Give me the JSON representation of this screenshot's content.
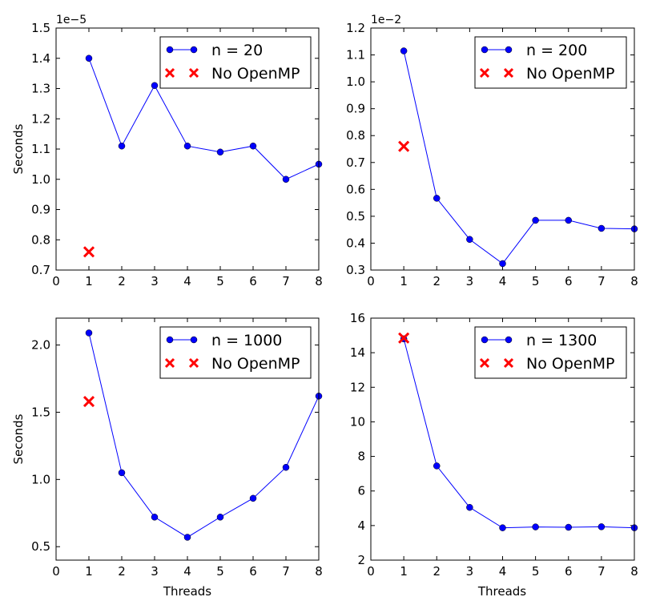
{
  "figure": {
    "shared_xlabel": "Threads",
    "shared_ylabel": "Seconds"
  },
  "colors": {
    "series": "#0000ff",
    "no_openmp": "#ff0000",
    "axes": "#000000"
  },
  "chart_data": [
    {
      "type": "line",
      "title": "",
      "xlabel": "",
      "ylabel": "Seconds",
      "xlim": [
        0,
        8
      ],
      "ylim": [
        0.7,
        1.5
      ],
      "xticks": [
        0,
        1,
        2,
        3,
        4,
        5,
        6,
        7,
        8
      ],
      "xtick_labels": [
        "0",
        "1",
        "2",
        "3",
        "4",
        "5",
        "6",
        "7",
        "8"
      ],
      "yticks": [
        0.7,
        0.8,
        0.9,
        1.0,
        1.1,
        1.2,
        1.3,
        1.4,
        1.5
      ],
      "ytick_labels": [
        "0.7",
        "0.8",
        "0.9",
        "1.0",
        "1.1",
        "1.2",
        "1.3",
        "1.4",
        "1.5"
      ],
      "offset_text": "1e−5",
      "grid": false,
      "legend_position": "upper right",
      "series": [
        {
          "name": "n = 20",
          "marker": "circle",
          "x": [
            1,
            2,
            3,
            4,
            5,
            6,
            7,
            8
          ],
          "y": [
            1.4,
            1.11,
            1.31,
            1.11,
            1.09,
            1.11,
            1.0,
            1.05
          ]
        },
        {
          "name": "No OpenMP",
          "marker": "x",
          "x": [
            1
          ],
          "y": [
            0.76
          ]
        }
      ]
    },
    {
      "type": "line",
      "title": "",
      "xlabel": "",
      "ylabel": "",
      "xlim": [
        0,
        8
      ],
      "ylim": [
        0.3,
        1.2
      ],
      "xticks": [
        0,
        1,
        2,
        3,
        4,
        5,
        6,
        7,
        8
      ],
      "xtick_labels": [
        "0",
        "1",
        "2",
        "3",
        "4",
        "5",
        "6",
        "7",
        "8"
      ],
      "yticks": [
        0.3,
        0.4,
        0.5,
        0.6,
        0.7,
        0.8,
        0.9,
        1.0,
        1.1,
        1.2
      ],
      "ytick_labels": [
        "0.3",
        "0.4",
        "0.5",
        "0.6",
        "0.7",
        "0.8",
        "0.9",
        "1.0",
        "1.1",
        "1.2"
      ],
      "offset_text": "1e−2",
      "grid": false,
      "legend_position": "upper right",
      "series": [
        {
          "name": "n = 200",
          "marker": "circle",
          "x": [
            1,
            2,
            3,
            4,
            5,
            6,
            7,
            8
          ],
          "y": [
            1.115,
            0.567,
            0.414,
            0.324,
            0.485,
            0.485,
            0.455,
            0.453
          ]
        },
        {
          "name": "No OpenMP",
          "marker": "x",
          "x": [
            1
          ],
          "y": [
            0.76
          ]
        }
      ]
    },
    {
      "type": "line",
      "title": "",
      "xlabel": "Threads",
      "ylabel": "Seconds",
      "xlim": [
        0,
        8
      ],
      "ylim": [
        0.4,
        2.2
      ],
      "xticks": [
        0,
        1,
        2,
        3,
        4,
        5,
        6,
        7,
        8
      ],
      "xtick_labels": [
        "0",
        "1",
        "2",
        "3",
        "4",
        "5",
        "6",
        "7",
        "8"
      ],
      "yticks": [
        0.5,
        1.0,
        1.5,
        2.0
      ],
      "ytick_labels": [
        "0.5",
        "1.0",
        "1.5",
        "2.0"
      ],
      "offset_text": "",
      "grid": false,
      "legend_position": "upper right",
      "series": [
        {
          "name": "n = 1000",
          "marker": "circle",
          "x": [
            1,
            2,
            3,
            4,
            5,
            6,
            7,
            8
          ],
          "y": [
            2.09,
            1.05,
            0.72,
            0.57,
            0.72,
            0.86,
            1.09,
            1.62
          ]
        },
        {
          "name": "No OpenMP",
          "marker": "x",
          "x": [
            1
          ],
          "y": [
            1.58
          ]
        }
      ]
    },
    {
      "type": "line",
      "title": "",
      "xlabel": "Threads",
      "ylabel": "",
      "xlim": [
        0,
        8
      ],
      "ylim": [
        2,
        16
      ],
      "xticks": [
        0,
        1,
        2,
        3,
        4,
        5,
        6,
        7,
        8
      ],
      "xtick_labels": [
        "0",
        "1",
        "2",
        "3",
        "4",
        "5",
        "6",
        "7",
        "8"
      ],
      "yticks": [
        2,
        4,
        6,
        8,
        10,
        12,
        14,
        16
      ],
      "ytick_labels": [
        "2",
        "4",
        "6",
        "8",
        "10",
        "12",
        "14",
        "16"
      ],
      "offset_text": "",
      "grid": false,
      "legend_position": "upper right",
      "series": [
        {
          "name": "n = 1300",
          "marker": "circle",
          "x": [
            1,
            2,
            3,
            4,
            5,
            6,
            7,
            8
          ],
          "y": [
            14.8,
            7.45,
            5.05,
            3.87,
            3.92,
            3.9,
            3.93,
            3.87
          ]
        },
        {
          "name": "No OpenMP",
          "marker": "x",
          "x": [
            1
          ],
          "y": [
            14.85
          ]
        }
      ]
    }
  ]
}
